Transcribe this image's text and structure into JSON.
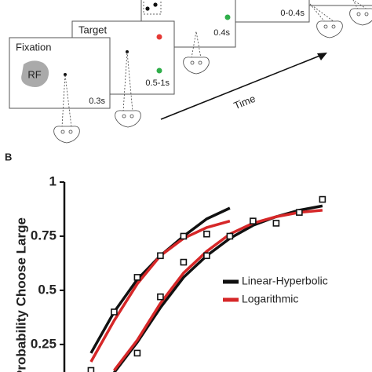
{
  "diagram": {
    "panels": [
      {
        "title": "Fixation",
        "field": "RF",
        "duration": "0.3s"
      },
      {
        "title": "Target",
        "duration": "0.5-1s"
      },
      {
        "duration": "0.4s"
      },
      {
        "duration": "0-0.4s"
      }
    ],
    "arrow_label": "Time"
  },
  "panel_label": "B",
  "chart_data": {
    "type": "line",
    "ylabel": "Probability Choose Large",
    "ylim": [
      0.13,
      1.0
    ],
    "yticks": [
      0.25,
      0.5,
      0.75,
      1
    ],
    "xlim": [
      -0.15,
      13.14
    ],
    "observed": [
      {
        "x": [
          1,
          2,
          3,
          4,
          5,
          6
        ],
        "values": [
          0.13,
          0.4,
          0.56,
          0.66,
          0.75,
          0.76
        ]
      },
      {
        "x": [
          3,
          4,
          5,
          6,
          7,
          8,
          9,
          10,
          11
        ],
        "values": [
          0.21,
          0.47,
          0.63,
          0.66,
          0.75,
          0.82,
          0.81,
          0.86,
          0.92
        ]
      }
    ],
    "series": [
      {
        "name": "Linear-Hyperbolic",
        "color": "#111111",
        "fits": [
          {
            "x": [
              1,
              2,
              3,
              4,
              5,
              6,
              7
            ],
            "values": [
              0.21,
              0.4,
              0.55,
              0.66,
              0.75,
              0.83,
              0.88
            ]
          },
          {
            "x": [
              2,
              3,
              4,
              5,
              6,
              7,
              8,
              9,
              10,
              11
            ],
            "values": [
              0.12,
              0.26,
              0.42,
              0.56,
              0.66,
              0.74,
              0.8,
              0.84,
              0.87,
              0.89
            ]
          }
        ]
      },
      {
        "name": "Logarithmic",
        "color": "#d62728",
        "fits": [
          {
            "x": [
              1,
              2,
              3,
              4,
              5,
              6,
              7
            ],
            "values": [
              0.17,
              0.36,
              0.53,
              0.66,
              0.74,
              0.79,
              0.82
            ]
          },
          {
            "x": [
              2,
              3,
              4,
              5,
              6,
              7,
              8,
              9,
              10,
              11
            ],
            "values": [
              0.13,
              0.27,
              0.44,
              0.58,
              0.68,
              0.76,
              0.81,
              0.84,
              0.86,
              0.87
            ]
          }
        ]
      }
    ]
  }
}
